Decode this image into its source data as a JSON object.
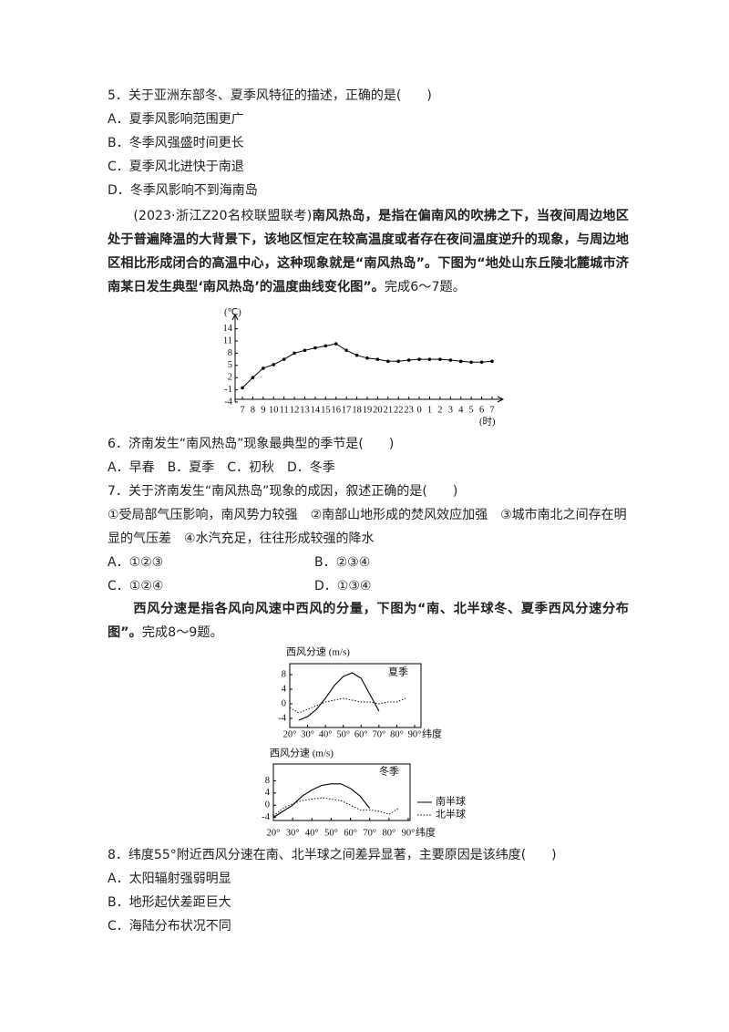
{
  "q5": {
    "stem": "5．关于亚洲东部冬、夏季风特征的描述，正确的是(　　)",
    "options": [
      "A．夏季风影响范围更广",
      "B．冬季风强盛时间更长",
      "C．夏季风北进快于南退",
      "D．冬季风影响不到海南岛"
    ]
  },
  "passage1": {
    "source": "(2023·浙江Z20名校联盟联考)",
    "text": "南风热岛，是指在偏南风的吹拂之下，当夜间周边地区处于普遍降温的大背景下，该地区恒定在较高温度或者存在夜间温度逆升的现象，与周边地区相比形成闭合的高温中心，这种现象就是“南风热岛”。下图为“地处山东丘陵北麓城市济南某日发生典型‘南风热岛’的温度曲线变化图”。",
    "tail": "完成6～7题。"
  },
  "q6": {
    "stem": "6．济南发生“南风热岛”现象最典型的季节是(　　)",
    "options": [
      "A．早春",
      "B．夏季",
      "C．初秋",
      "D．冬季"
    ]
  },
  "q7": {
    "stem": "7．关于济南发生“南风热岛”现象的成因，叙述正确的是(　　)",
    "statements": [
      "①受局部气压影响，南风势力较强",
      "②南部山地形成的焚风效应加强",
      "③城市南北之间存在明显的气压差",
      "④水汽充足，往往形成较强的降水"
    ],
    "options": [
      "A．①②③",
      "B．②③④",
      "C．①②④",
      "D．①③④"
    ]
  },
  "passage2": {
    "text": "西风分速是指各风向风速中西风的分量，下图为“南、北半球冬、夏季西风分速分布图”。",
    "tail": "完成8～9题。"
  },
  "q8": {
    "stem": "8．纬度55°附近西风分速在南、北半球之间差异显著，主要原因是该纬度(　　)",
    "options": [
      "A．太阳辐射强弱明显",
      "B．地形起伏差距巨大",
      "C．海陆分布状况不同"
    ]
  },
  "chart_data": [
    {
      "type": "line",
      "y_label": "(℃)",
      "x_label": "(时)",
      "categories": [
        "7",
        "8",
        "9",
        "10",
        "11",
        "12",
        "13",
        "14",
        "15",
        "16",
        "17",
        "18",
        "19",
        "20",
        "21",
        "22",
        "23",
        "0",
        "1",
        "2",
        "3",
        "4",
        "5",
        "6",
        "7"
      ],
      "values": [
        -0.5,
        2,
        4.3,
        5.2,
        6.5,
        8,
        8.7,
        9.3,
        9.8,
        10.3,
        8.7,
        7.5,
        6.8,
        6.5,
        6,
        6,
        6.3,
        6.5,
        6.5,
        6.5,
        6.3,
        6,
        5.8,
        5.8,
        6
      ],
      "color": "#000000",
      "ylim": [
        -4,
        17.5
      ],
      "yticks": [
        14,
        11,
        8,
        5,
        2,
        -1,
        -4
      ]
    },
    {
      "type": "line",
      "title": "西风分速 (m/s)",
      "season": "夏季",
      "x_label": "纬度",
      "x": [
        20,
        25,
        30,
        35,
        40,
        45,
        50,
        55,
        60,
        65,
        70,
        75,
        80,
        85,
        90
      ],
      "xlim": [
        20,
        90
      ],
      "xticks": [
        {
          "value": 20,
          "label": "20°"
        },
        {
          "value": 30,
          "label": "30°"
        },
        {
          "value": 40,
          "label": "40°"
        },
        {
          "value": 50,
          "label": "50°"
        },
        {
          "value": 60,
          "label": "60°"
        },
        {
          "value": 70,
          "label": "70°"
        },
        {
          "value": 80,
          "label": "80°"
        },
        {
          "value": 90,
          "label": "90°"
        }
      ],
      "ylim": [
        -6.5,
        11
      ],
      "yticks": [
        8,
        4,
        0,
        -4
      ],
      "series": [
        {
          "color": "#000000",
          "style": "solid",
          "values": [
            null,
            -4.5,
            -3.5,
            -1.5,
            1.5,
            5,
            7.5,
            8.5,
            7,
            2.5,
            -2,
            null,
            null,
            null,
            null
          ]
        },
        {
          "color": "#000000",
          "style": "dotted",
          "values": [
            -1,
            -2.5,
            -1.5,
            -0.5,
            0.5,
            1,
            1.5,
            1,
            0.5,
            0.5,
            0,
            0.5,
            0.5,
            1.5,
            null
          ]
        }
      ]
    },
    {
      "type": "line",
      "title": "西风分速 (m/s)",
      "season": "冬季",
      "x_label": "纬度",
      "x": [
        20,
        25,
        30,
        35,
        40,
        45,
        50,
        55,
        60,
        65,
        70,
        75,
        80,
        85,
        90
      ],
      "xlim": [
        20,
        90
      ],
      "xticks": [
        {
          "value": 20,
          "label": "20°"
        },
        {
          "value": 30,
          "label": "30°"
        },
        {
          "value": 40,
          "label": "40°"
        },
        {
          "value": 50,
          "label": "50°"
        },
        {
          "value": 60,
          "label": "60°"
        },
        {
          "value": 70,
          "label": "70°"
        },
        {
          "value": 80,
          "label": "80°"
        },
        {
          "value": 90,
          "label": "90°"
        }
      ],
      "ylim": [
        -5,
        13.5
      ],
      "yticks": [
        8,
        4,
        0,
        -4
      ],
      "legend": "right",
      "series": [
        {
          "name": "南半球",
          "color": "#000000",
          "style": "solid",
          "values": [
            -4,
            -2,
            0,
            3,
            5,
            6.5,
            7,
            7,
            5.5,
            3,
            -1,
            null,
            null,
            null,
            null
          ]
        },
        {
          "name": "北半球",
          "color": "#000000",
          "style": "dotted",
          "values": [
            -3.5,
            -1,
            0.5,
            1.5,
            2,
            2.5,
            2,
            1.5,
            0,
            -1.5,
            -1.5,
            -2,
            -3,
            -1,
            null
          ]
        }
      ]
    }
  ]
}
